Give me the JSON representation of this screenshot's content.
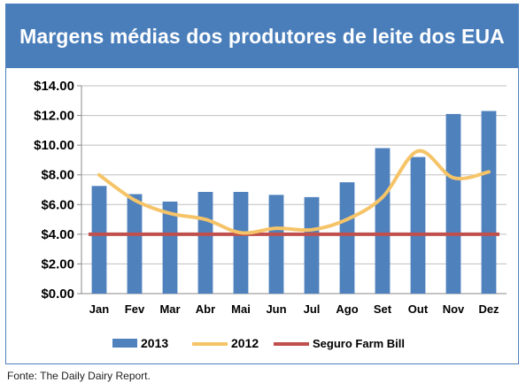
{
  "colors": {
    "title_bg": "#4a7ebb",
    "bar_2013": "#4f81bd",
    "line_2012": "#f6c468",
    "line_farm_bill": "#c0504d",
    "grid": "#bfbfbf"
  },
  "source": "Fonte: The Daily Dairy Report.",
  "chart_data": {
    "type": "bar",
    "title": "Margens médias dos produtores de leite dos EUA",
    "categories": [
      "Jan",
      "Fev",
      "Mar",
      "Abr",
      "Mai",
      "Jun",
      "Jul",
      "Ago",
      "Set",
      "Out",
      "Nov",
      "Dez"
    ],
    "series": [
      {
        "name": "2013",
        "type": "bar",
        "values": [
          7.25,
          6.7,
          6.2,
          6.85,
          6.85,
          6.65,
          6.5,
          7.5,
          9.8,
          9.2,
          12.1,
          12.3
        ]
      },
      {
        "name": "2012",
        "type": "line",
        "values": [
          8.0,
          6.3,
          5.4,
          5.0,
          4.1,
          4.4,
          4.3,
          5.0,
          6.5,
          9.6,
          7.8,
          8.2
        ]
      },
      {
        "name": "Seguro Farm Bill",
        "type": "line",
        "values": [
          4.0,
          4.0,
          4.0,
          4.0,
          4.0,
          4.0,
          4.0,
          4.0,
          4.0,
          4.0,
          4.0,
          4.0
        ]
      }
    ],
    "ylim": [
      0,
      14
    ],
    "yticks": [
      "$0.00",
      "$2.00",
      "$4.00",
      "$6.00",
      "$8.00",
      "$10.00",
      "$12.00",
      "$14.00"
    ],
    "grid": true,
    "legend_position": "bottom"
  }
}
